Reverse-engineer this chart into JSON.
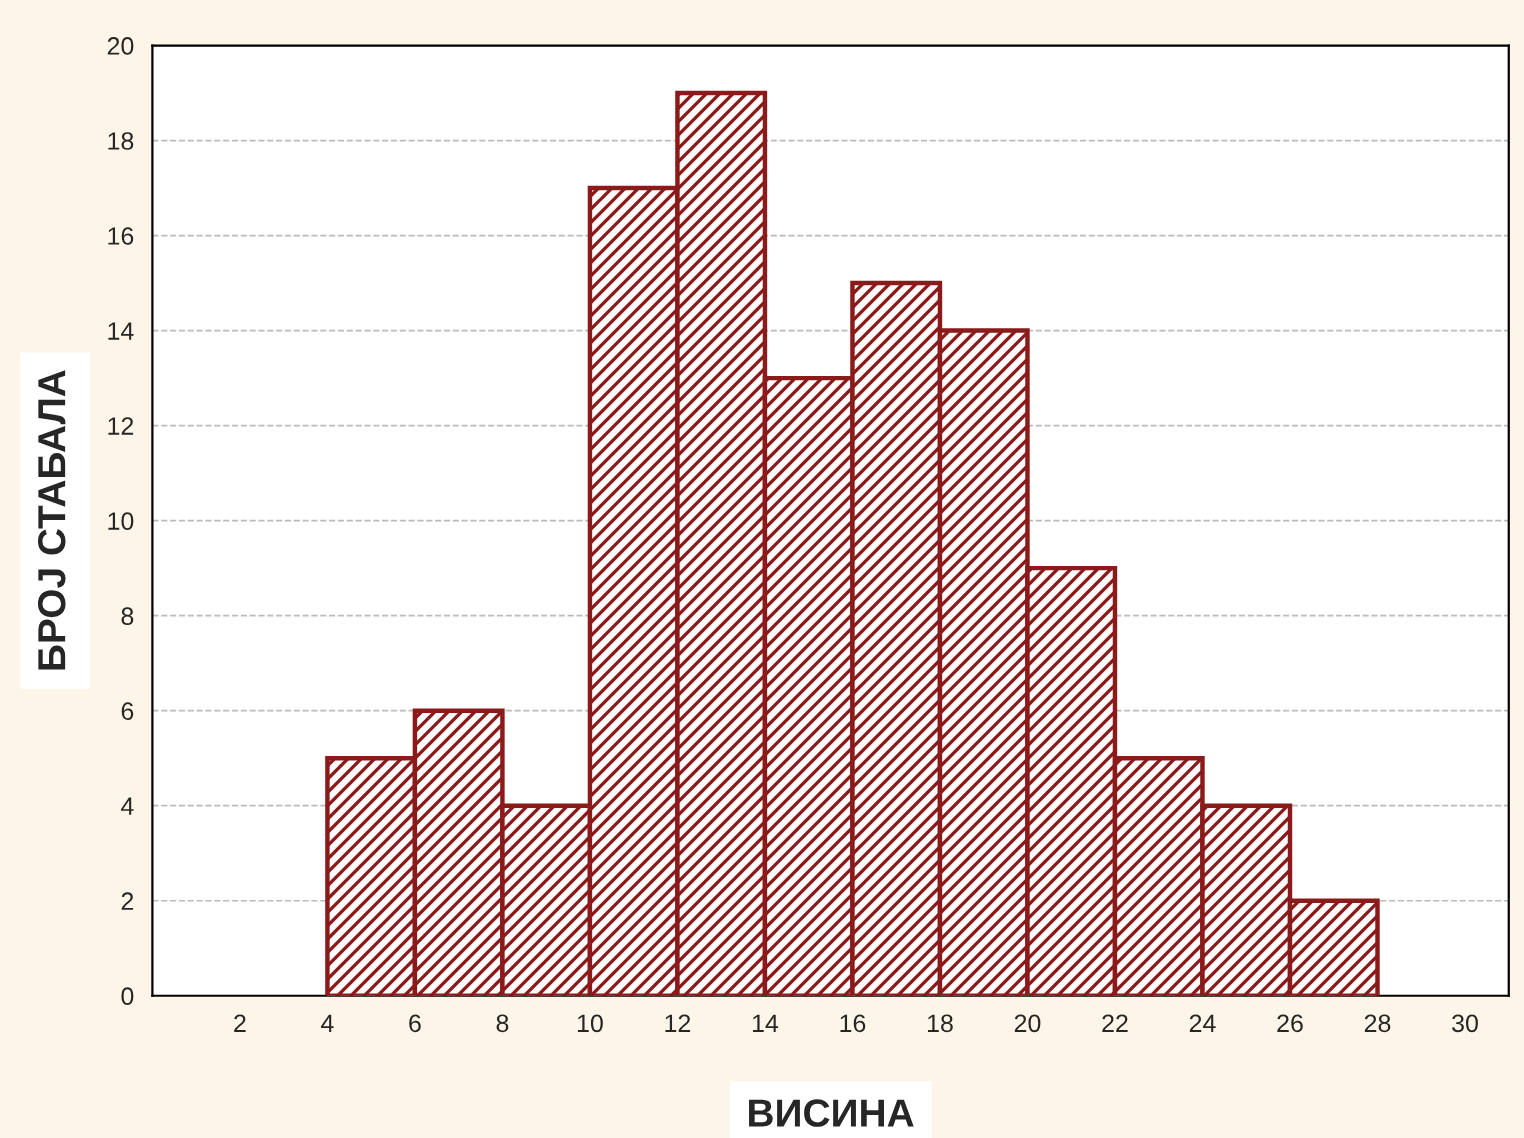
{
  "chart_data": {
    "type": "histogram",
    "xlabel": "ВИСИНА",
    "ylabel": "БРОЈ СТАБАЛА",
    "bins": [
      4,
      6,
      8,
      10,
      12,
      14,
      16,
      18,
      20,
      22,
      24,
      26,
      28
    ],
    "values": [
      5,
      6,
      4,
      17,
      19,
      13,
      15,
      14,
      9,
      5,
      4,
      2
    ],
    "color": "#8b1a1a",
    "xlim": [
      0,
      31
    ],
    "xticks": [
      2,
      4,
      6,
      8,
      10,
      12,
      14,
      16,
      18,
      20,
      22,
      24,
      26,
      28,
      30
    ],
    "ylim": [
      0,
      20
    ],
    "yticks": [
      0,
      2,
      4,
      6,
      8,
      10,
      12,
      14,
      16,
      18,
      20
    ],
    "grid": "y"
  }
}
